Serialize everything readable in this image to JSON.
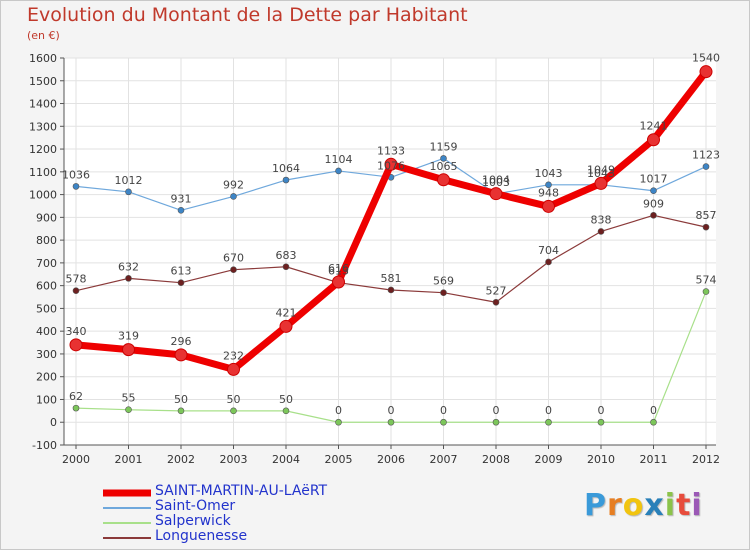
{
  "title": "Evolution du Montant de la Dette par Habitant",
  "unit": "(en €)",
  "logo": {
    "parts": [
      {
        "text": "P",
        "color": "#3a9ad9"
      },
      {
        "text": "r",
        "color": "#e67e22"
      },
      {
        "text": "o",
        "color": "#f1c40f"
      },
      {
        "text": "x",
        "color": "#2980b9"
      },
      {
        "text": "i",
        "color": "#8bc34a"
      },
      {
        "text": "t",
        "color": "#e74c3c"
      },
      {
        "text": "i",
        "color": "#9b59b6"
      }
    ]
  },
  "chart_data": {
    "type": "line",
    "title": "Evolution du Montant de la Dette par Habitant",
    "ylabel": "(en €)",
    "xlabel": "",
    "ylim": [
      -100,
      1600
    ],
    "yticks": [
      -100,
      0,
      100,
      200,
      300,
      400,
      500,
      600,
      700,
      800,
      900,
      1000,
      1100,
      1200,
      1300,
      1400,
      1500,
      1600
    ],
    "x": [
      "2000",
      "2001",
      "2002",
      "2003",
      "2004",
      "2005",
      "2006",
      "2007",
      "2008",
      "2009",
      "2010",
      "2011",
      "2012"
    ],
    "grid": true,
    "legend_position": "bottom-left",
    "series": [
      {
        "name": "SAINT-MARTIN-AU-LAëRT",
        "color": "#ee0000",
        "marker": "#e83232",
        "width": 7,
        "values": [
          340,
          319,
          296,
          232,
          421,
          616,
          1133,
          1065,
          1004,
          948,
          1049,
          1241,
          1540
        ]
      },
      {
        "name": "Saint-Omer",
        "color": "#6fa8dc",
        "marker": "#3d85c6",
        "width": 1.2,
        "values": [
          1036,
          1012,
          931,
          992,
          1064,
          1104,
          1076,
          1159,
          1003,
          1043,
          1043,
          1017,
          1123
        ]
      },
      {
        "name": "Salperwick",
        "color": "#a8e08a",
        "marker": "#7cc65a",
        "width": 1.2,
        "values": [
          62,
          55,
          50,
          50,
          50,
          0,
          0,
          0,
          0,
          0,
          0,
          0,
          574
        ]
      },
      {
        "name": "Longuenesse",
        "color": "#8b3a3a",
        "marker": "#6d2020",
        "width": 1.2,
        "values": [
          578,
          632,
          613,
          670,
          683,
          613,
          581,
          569,
          527,
          704,
          838,
          909,
          857
        ]
      }
    ]
  }
}
